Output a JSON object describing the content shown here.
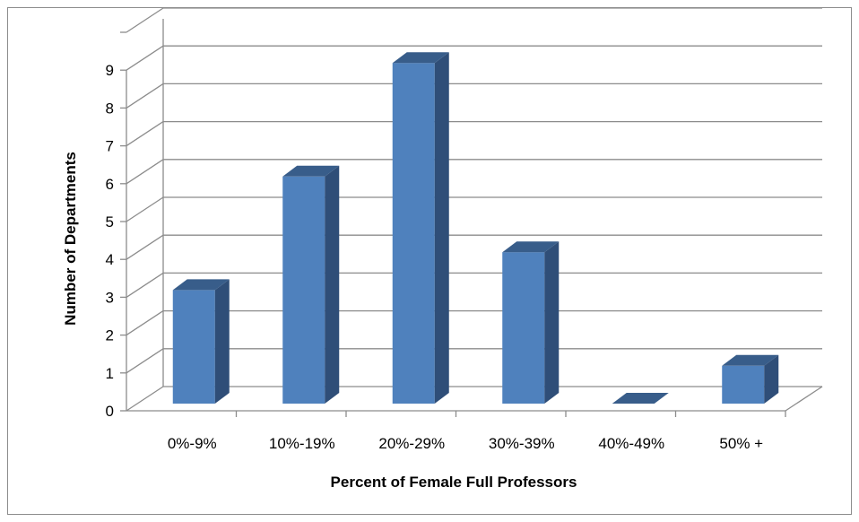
{
  "chart_data": {
    "type": "bar",
    "title": "",
    "xlabel": "Percent of Female Full Professors",
    "ylabel": "Number of Departments",
    "categories": [
      "0%-9%",
      "10%-19%",
      "20%-29%",
      "30%-39%",
      "40%-49%",
      "50% +"
    ],
    "values": [
      3,
      6,
      9,
      4,
      0,
      1
    ],
    "ylim": [
      0,
      9
    ],
    "yticks": [
      "0",
      "1",
      "2",
      "3",
      "4",
      "5",
      "6",
      "7",
      "8",
      "9"
    ],
    "grid": true,
    "legend": "none",
    "style": "3d-column",
    "colors": {
      "front": "#4f81bd",
      "side": "#2f4e78",
      "top": "#385d8a",
      "grid": "#8c8c8c"
    }
  }
}
